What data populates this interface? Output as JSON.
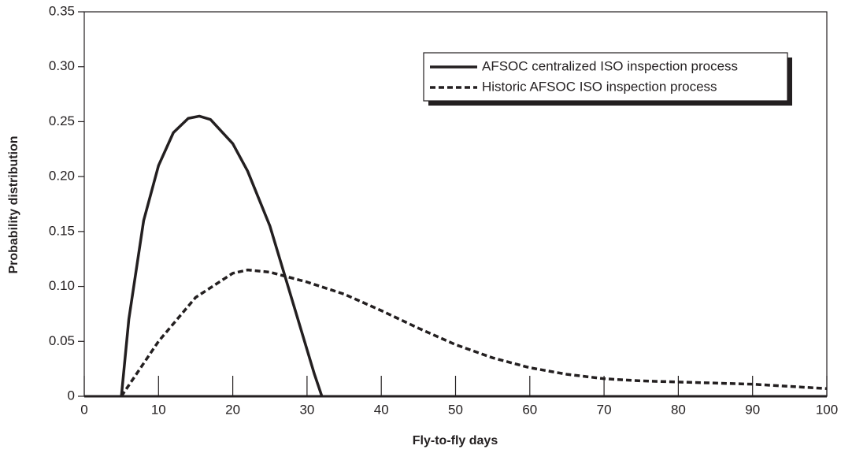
{
  "chart_data": {
    "type": "line",
    "x_label": "Fly-to-fly days",
    "y_label": "Probability distribution",
    "xlim": [
      0,
      100
    ],
    "xticks": [
      0,
      10,
      20,
      30,
      40,
      50,
      60,
      70,
      80,
      90,
      100
    ],
    "ylim": [
      0,
      0.35
    ],
    "yticks": [
      0,
      0.05,
      {
        "value": 0.1,
        "label": "0.10"
      },
      0.15,
      {
        "value": 0.2,
        "label": "0.20"
      },
      0.25,
      {
        "value": 0.3,
        "label": "0.30"
      },
      0.35
    ],
    "grid": false,
    "legend": "upper right",
    "series": [
      {
        "name": "AFSOC centralized ISO inspection process",
        "color": "#231f20",
        "style": "solid",
        "x": [
          5,
          6,
          8,
          10,
          12,
          14,
          15.5,
          17,
          20,
          22,
          25,
          27,
          29,
          31,
          32
        ],
        "values": [
          0,
          0.07,
          0.16,
          0.21,
          0.24,
          0.253,
          0.255,
          0.252,
          0.23,
          0.205,
          0.155,
          0.11,
          0.065,
          0.02,
          0
        ]
      },
      {
        "name": "Historic AFSOC ISO inspection process",
        "color": "#231f20",
        "style": "dashed",
        "x": [
          5,
          7,
          10,
          15,
          20,
          22,
          25,
          30,
          35,
          40,
          45,
          50,
          55,
          60,
          65,
          70,
          75,
          80,
          85,
          90,
          95,
          100
        ],
        "values": [
          0,
          0.02,
          0.05,
          0.09,
          0.112,
          0.115,
          0.113,
          0.104,
          0.093,
          0.078,
          0.062,
          0.047,
          0.035,
          0.026,
          0.02,
          0.016,
          0.014,
          0.013,
          0.012,
          0.011,
          0.009,
          0.007
        ]
      }
    ]
  }
}
